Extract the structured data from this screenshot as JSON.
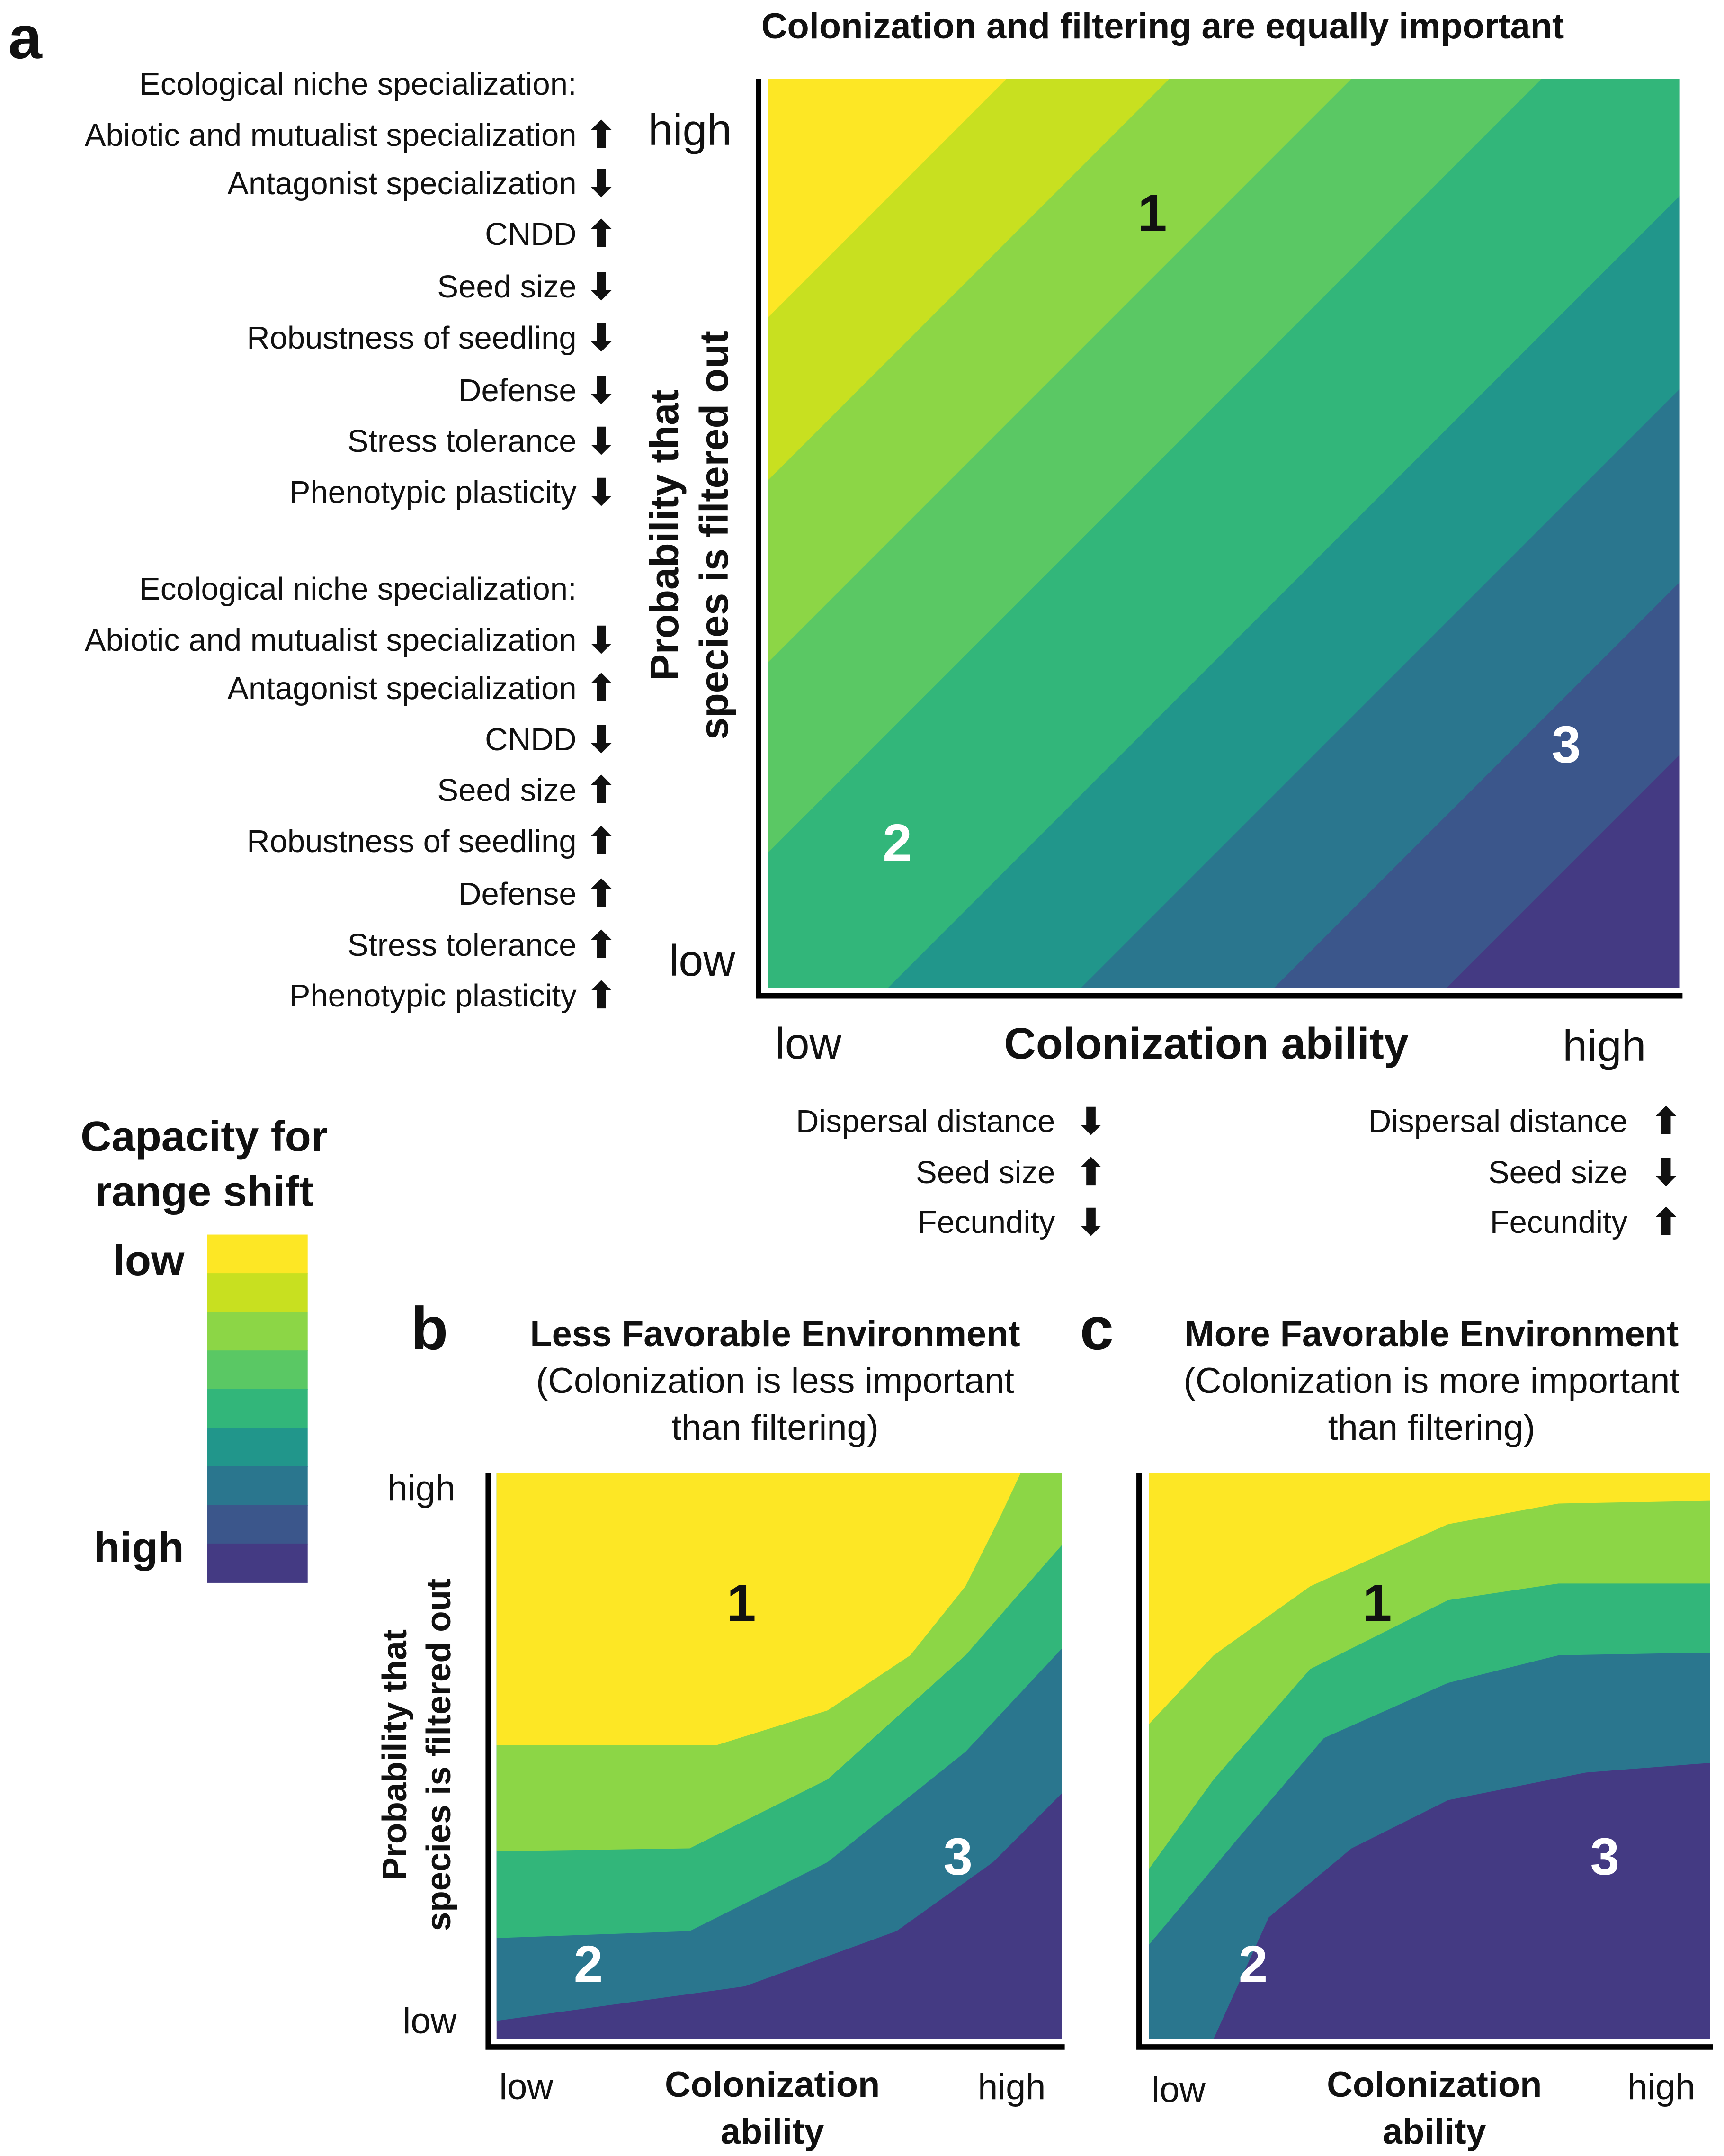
{
  "colors": [
    "#fde725",
    "#c8e020",
    "#8cd646",
    "#5ac864",
    "#32b67a",
    "#21968b",
    "#2a768e",
    "#3b568b",
    "#443a83"
  ],
  "panel_a": {
    "letter": "a",
    "title": "Colonization and filtering are equally important",
    "y_label_line1": "Probability that",
    "y_label_line2": "species is filtered out",
    "y_high": "high",
    "y_low": "low",
    "x_low": "low",
    "x_label": "Colonization ability",
    "x_high": "high",
    "traits_high": [
      {
        "text": "Ecological niche specialization:",
        "arrow": ""
      },
      {
        "text": "Abiotic and mutualist specialization",
        "arrow": "up"
      },
      {
        "text": "Antagonist specialization",
        "arrow": "down"
      },
      {
        "text": "CNDD",
        "arrow": "up"
      },
      {
        "text": "Seed size",
        "arrow": "down"
      },
      {
        "text": "Robustness of seedling",
        "arrow": "down"
      },
      {
        "text": "Defense",
        "arrow": "down"
      },
      {
        "text": "Stress tolerance",
        "arrow": "down"
      },
      {
        "text": "Phenotypic plasticity",
        "arrow": "down"
      }
    ],
    "traits_low": [
      {
        "text": "Ecological niche specialization:",
        "arrow": ""
      },
      {
        "text": "Abiotic and mutualist specialization",
        "arrow": "down"
      },
      {
        "text": "Antagonist specialization",
        "arrow": "up"
      },
      {
        "text": "CNDD",
        "arrow": "down"
      },
      {
        "text": "Seed size",
        "arrow": "up"
      },
      {
        "text": "Robustness of seedling",
        "arrow": "up"
      },
      {
        "text": "Defense",
        "arrow": "up"
      },
      {
        "text": "Stress tolerance",
        "arrow": "up"
      },
      {
        "text": "Phenotypic plasticity",
        "arrow": "up"
      }
    ],
    "x_traits_low": [
      {
        "text": "Dispersal distance",
        "arrow": "down"
      },
      {
        "text": "Seed size",
        "arrow": "up"
      },
      {
        "text": "Fecundity",
        "arrow": "down"
      }
    ],
    "x_traits_high": [
      {
        "text": "Dispersal distance",
        "arrow": "up"
      },
      {
        "text": "Seed size",
        "arrow": "down"
      },
      {
        "text": "Fecundity",
        "arrow": "up"
      }
    ],
    "region_labels": [
      "1",
      "2",
      "3"
    ]
  },
  "legend": {
    "title_line1": "Capacity for",
    "title_line2": "range shift",
    "low": "low",
    "high": "high"
  },
  "panel_b": {
    "letter": "b",
    "title": "Less Favorable Environment",
    "subtitle_line1": "(Colonization is less important",
    "subtitle_line2": "than filtering)",
    "y_label_line1": "Probability that",
    "y_label_line2": "species is filtered out",
    "y_high": "high",
    "y_low": "low",
    "x_low": "low",
    "x_label_line1": "Colonization",
    "x_label_line2": "ability",
    "x_high": "high",
    "region_labels": [
      "1",
      "2",
      "3"
    ]
  },
  "panel_c": {
    "letter": "c",
    "title": "More Favorable Environment",
    "subtitle_line1": "(Colonization is more important",
    "subtitle_line2": "than filtering)",
    "x_low": "low",
    "x_label_line1": "Colonization",
    "x_label_line2": "ability",
    "x_high": "high",
    "region_labels": [
      "1",
      "2",
      "3"
    ]
  }
}
